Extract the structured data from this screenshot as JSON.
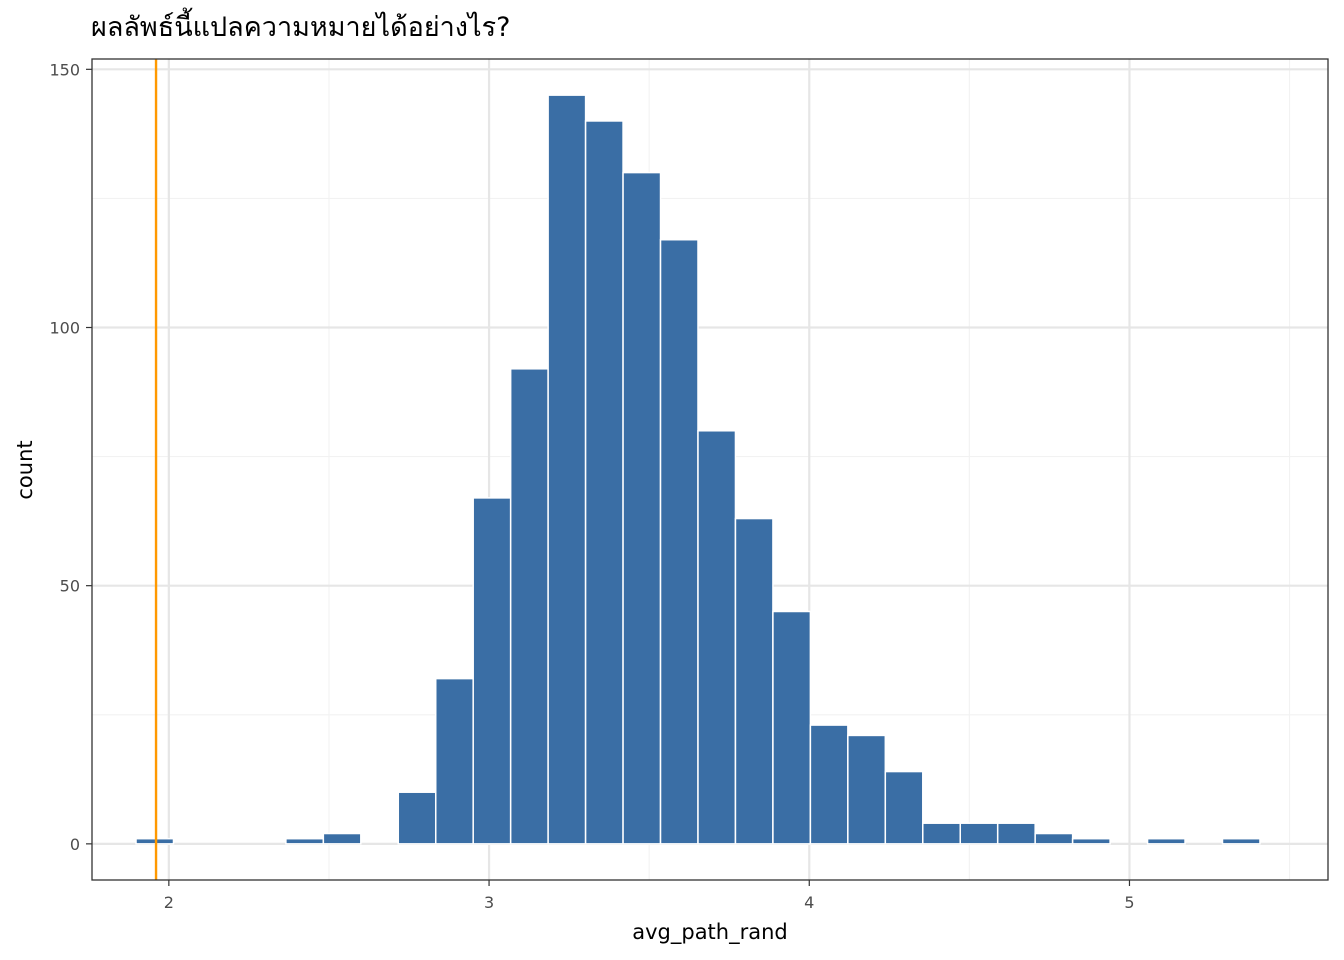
{
  "chart_data": {
    "type": "bar",
    "title": "ผลลัพธ์นี้แปลความหมายได้อย่างไร?",
    "xlabel": "avg_path_rand",
    "ylabel": "count",
    "xlim": [
      1.76,
      5.62
    ],
    "ylim": [
      -7,
      152
    ],
    "x_ticks": [
      2,
      3,
      4,
      5
    ],
    "y_ticks": [
      0,
      50,
      100,
      150
    ],
    "grid": true,
    "bin_width": 0.117,
    "bins": [
      {
        "x": 1.956,
        "count": 1
      },
      {
        "x": 2.073,
        "count": 0
      },
      {
        "x": 2.19,
        "count": 0
      },
      {
        "x": 2.307,
        "count": 0
      },
      {
        "x": 2.424,
        "count": 1
      },
      {
        "x": 2.541,
        "count": 2
      },
      {
        "x": 2.658,
        "count": 0
      },
      {
        "x": 2.775,
        "count": 10
      },
      {
        "x": 2.892,
        "count": 32
      },
      {
        "x": 3.009,
        "count": 67
      },
      {
        "x": 3.126,
        "count": 92
      },
      {
        "x": 3.243,
        "count": 145
      },
      {
        "x": 3.36,
        "count": 140
      },
      {
        "x": 3.477,
        "count": 130
      },
      {
        "x": 3.594,
        "count": 117
      },
      {
        "x": 3.711,
        "count": 80
      },
      {
        "x": 3.828,
        "count": 63
      },
      {
        "x": 3.945,
        "count": 45
      },
      {
        "x": 4.062,
        "count": 23
      },
      {
        "x": 4.179,
        "count": 21
      },
      {
        "x": 4.296,
        "count": 14
      },
      {
        "x": 4.413,
        "count": 4
      },
      {
        "x": 4.53,
        "count": 4
      },
      {
        "x": 4.647,
        "count": 4
      },
      {
        "x": 4.764,
        "count": 2
      },
      {
        "x": 4.881,
        "count": 1
      },
      {
        "x": 4.998,
        "count": 0
      },
      {
        "x": 5.115,
        "count": 1
      },
      {
        "x": 5.232,
        "count": 0
      },
      {
        "x": 5.349,
        "count": 1
      }
    ],
    "vline_x": 1.96,
    "colors": {
      "bar_fill": "#3a6ea5",
      "bar_stroke": "#ffffff",
      "vline": "#ff9900",
      "grid_major": "#e6e6e6",
      "grid_minor": "#f2f2f2",
      "panel_border": "#333333"
    }
  }
}
